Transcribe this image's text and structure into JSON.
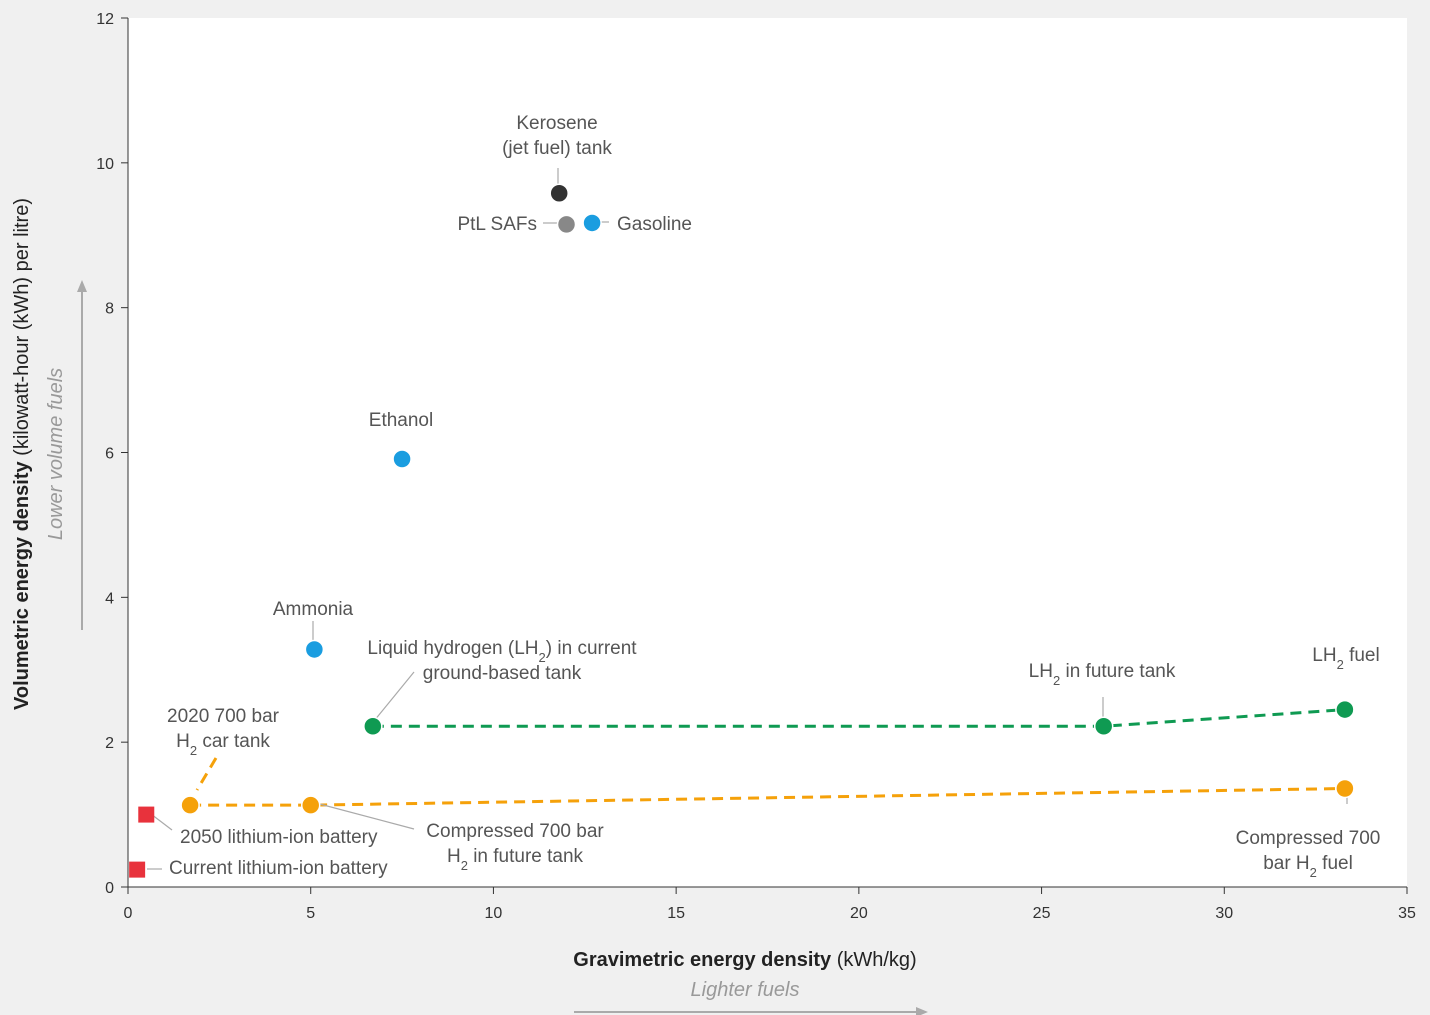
{
  "chart_data": {
    "type": "scatter",
    "xlabel": {
      "bold": "Gravimetric energy density",
      "unit": " (kWh/kg)"
    },
    "ylabel": {
      "bold": "Volumetric energy density",
      "unit": " (kilowatt-hour (kWh) per litre)"
    },
    "x_hint": "Lighter fuels",
    "y_hint": "Lower volume fuels",
    "xlim": [
      0,
      35
    ],
    "ylim": [
      0,
      12
    ],
    "xticks": [
      0,
      5,
      10,
      15,
      20,
      25,
      30,
      35
    ],
    "yticks": [
      0,
      2,
      4,
      6,
      8,
      10,
      12
    ],
    "grid": false,
    "colors": {
      "kerosene": "#333333",
      "ptl": "#888888",
      "blue": "#1a9de0",
      "green": "#0f9a52",
      "orange": "#f5a10a",
      "red": "#e8323c",
      "label": "#555555",
      "leader": "#aaaaaa",
      "axis": "#333333",
      "hint": "#999999"
    },
    "series": [
      {
        "group": "liquid_hydrogen",
        "color_key": "green",
        "dashed": true,
        "points": [
          {
            "x": 6.7,
            "y": 2.22,
            "label": [
              "Liquid hydrogen (LH{2}) in current",
              "ground-based tank"
            ]
          },
          {
            "x": 26.7,
            "y": 2.22,
            "label": [
              "LH{2} in future tank"
            ]
          },
          {
            "x": 33.3,
            "y": 2.45,
            "label": [
              "LH{2} fuel"
            ]
          }
        ]
      },
      {
        "group": "compressed_hydrogen",
        "color_key": "orange",
        "dashed": true,
        "points": [
          {
            "x": 1.7,
            "y": 1.13,
            "label": [
              "2020 700 bar",
              "H{2} car tank"
            ]
          },
          {
            "x": 5.0,
            "y": 1.13,
            "label": [
              "Compressed 700 bar",
              "H{2} in future tank"
            ]
          },
          {
            "x": 33.3,
            "y": 1.36,
            "label": [
              "Compressed 700",
              "bar H{2} fuel"
            ]
          }
        ]
      },
      {
        "group": "fuels",
        "dashed": false,
        "points": [
          {
            "x": 11.8,
            "y": 9.58,
            "color_key": "kerosene",
            "label": [
              "Kerosene",
              "(jet fuel) tank"
            ]
          },
          {
            "x": 12.0,
            "y": 9.15,
            "color_key": "ptl",
            "label": [
              "PtL SAFs"
            ]
          },
          {
            "x": 12.7,
            "y": 9.17,
            "color_key": "blue",
            "label": [
              "Gasoline"
            ]
          },
          {
            "x": 7.5,
            "y": 5.91,
            "color_key": "blue",
            "label": [
              "Ethanol"
            ]
          },
          {
            "x": 5.1,
            "y": 3.28,
            "color_key": "blue",
            "label": [
              "Ammonia"
            ]
          }
        ]
      },
      {
        "group": "batteries",
        "dashed": false,
        "marker": "square",
        "color_key": "red",
        "points": [
          {
            "x": 0.5,
            "y": 1.0,
            "label": [
              "2050 lithium-ion battery"
            ]
          },
          {
            "x": 0.25,
            "y": 0.24,
            "label": [
              "Current lithium-ion battery"
            ]
          }
        ]
      }
    ]
  }
}
